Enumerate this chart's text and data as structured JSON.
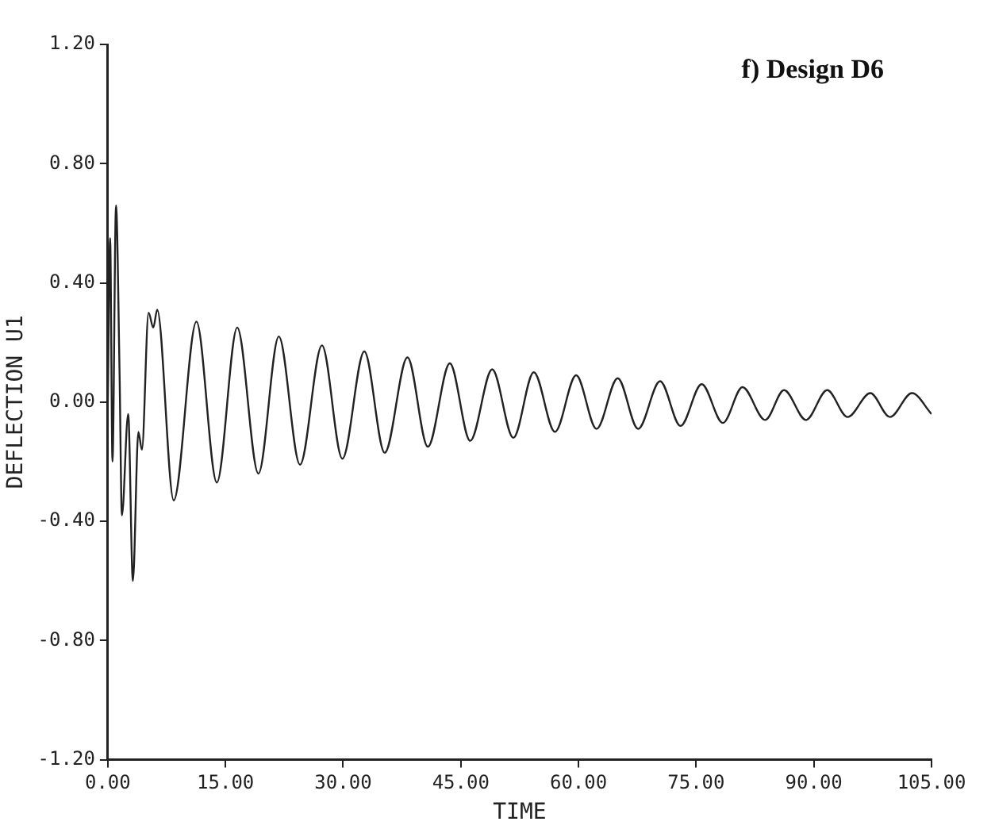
{
  "chart_data": {
    "type": "line",
    "title": "f) Design D6",
    "xlabel": "TIME",
    "ylabel": "DEFLECTION U1",
    "x": [
      0,
      0.3,
      0.6,
      1.05,
      1.5,
      1.8,
      2.6,
      3.2,
      3.9,
      4.35,
      5.2,
      5.8,
      6.3,
      8.4,
      11.3,
      13.9,
      16.5,
      19.2,
      21.8,
      24.5,
      27.3,
      29.9,
      32.7,
      35.3,
      38.2,
      40.8,
      43.6,
      46.2,
      49.0,
      51.7,
      54.3,
      57.0,
      59.7,
      62.3,
      65.0,
      67.6,
      70.4,
      73.0,
      75.7,
      78.4,
      80.9,
      83.8,
      86.2,
      89.0,
      91.7,
      94.3,
      97.2,
      99.7,
      102.5,
      105
    ],
    "series": [
      {
        "color": "#222222",
        "values": [
          0,
          0.55,
          -0.2,
          0.66,
          0.1,
          -0.38,
          -0.04,
          -0.6,
          -0.1,
          -0.16,
          0.3,
          0.25,
          0.31,
          -0.33,
          0.27,
          -0.27,
          0.25,
          -0.24,
          0.22,
          -0.21,
          0.19,
          -0.19,
          0.17,
          -0.17,
          0.15,
          -0.15,
          0.13,
          -0.13,
          0.11,
          -0.12,
          0.1,
          -0.1,
          0.09,
          -0.09,
          0.08,
          -0.09,
          0.07,
          -0.08,
          0.06,
          -0.07,
          0.05,
          -0.06,
          0.04,
          -0.06,
          0.04,
          -0.05,
          0.03,
          -0.05,
          0.03,
          -0.04
        ]
      }
    ],
    "xlim": [
      0,
      105
    ],
    "ylim": [
      -1.2,
      1.2
    ],
    "xticks": [
      {
        "value": 0,
        "label": "0.00"
      },
      {
        "value": 15,
        "label": "15.00"
      },
      {
        "value": 30,
        "label": "30.00"
      },
      {
        "value": 45,
        "label": "45.00"
      },
      {
        "value": 60,
        "label": "60.00"
      },
      {
        "value": 75,
        "label": "75.00"
      },
      {
        "value": 90,
        "label": "90.00"
      },
      {
        "value": 105,
        "label": "105.00"
      }
    ],
    "yticks": [
      {
        "value": -1.2,
        "label": "-1.20"
      },
      {
        "value": -0.8,
        "label": "-0.80"
      },
      {
        "value": -0.4,
        "label": "-0.40"
      },
      {
        "value": 0,
        "label": "0.00"
      },
      {
        "value": 0.4,
        "label": "0.40"
      },
      {
        "value": 0.8,
        "label": "0.80"
      },
      {
        "value": 1.2,
        "label": "1.20"
      }
    ],
    "grid": false,
    "legend": false,
    "marker": "none",
    "line_style": "solid"
  }
}
